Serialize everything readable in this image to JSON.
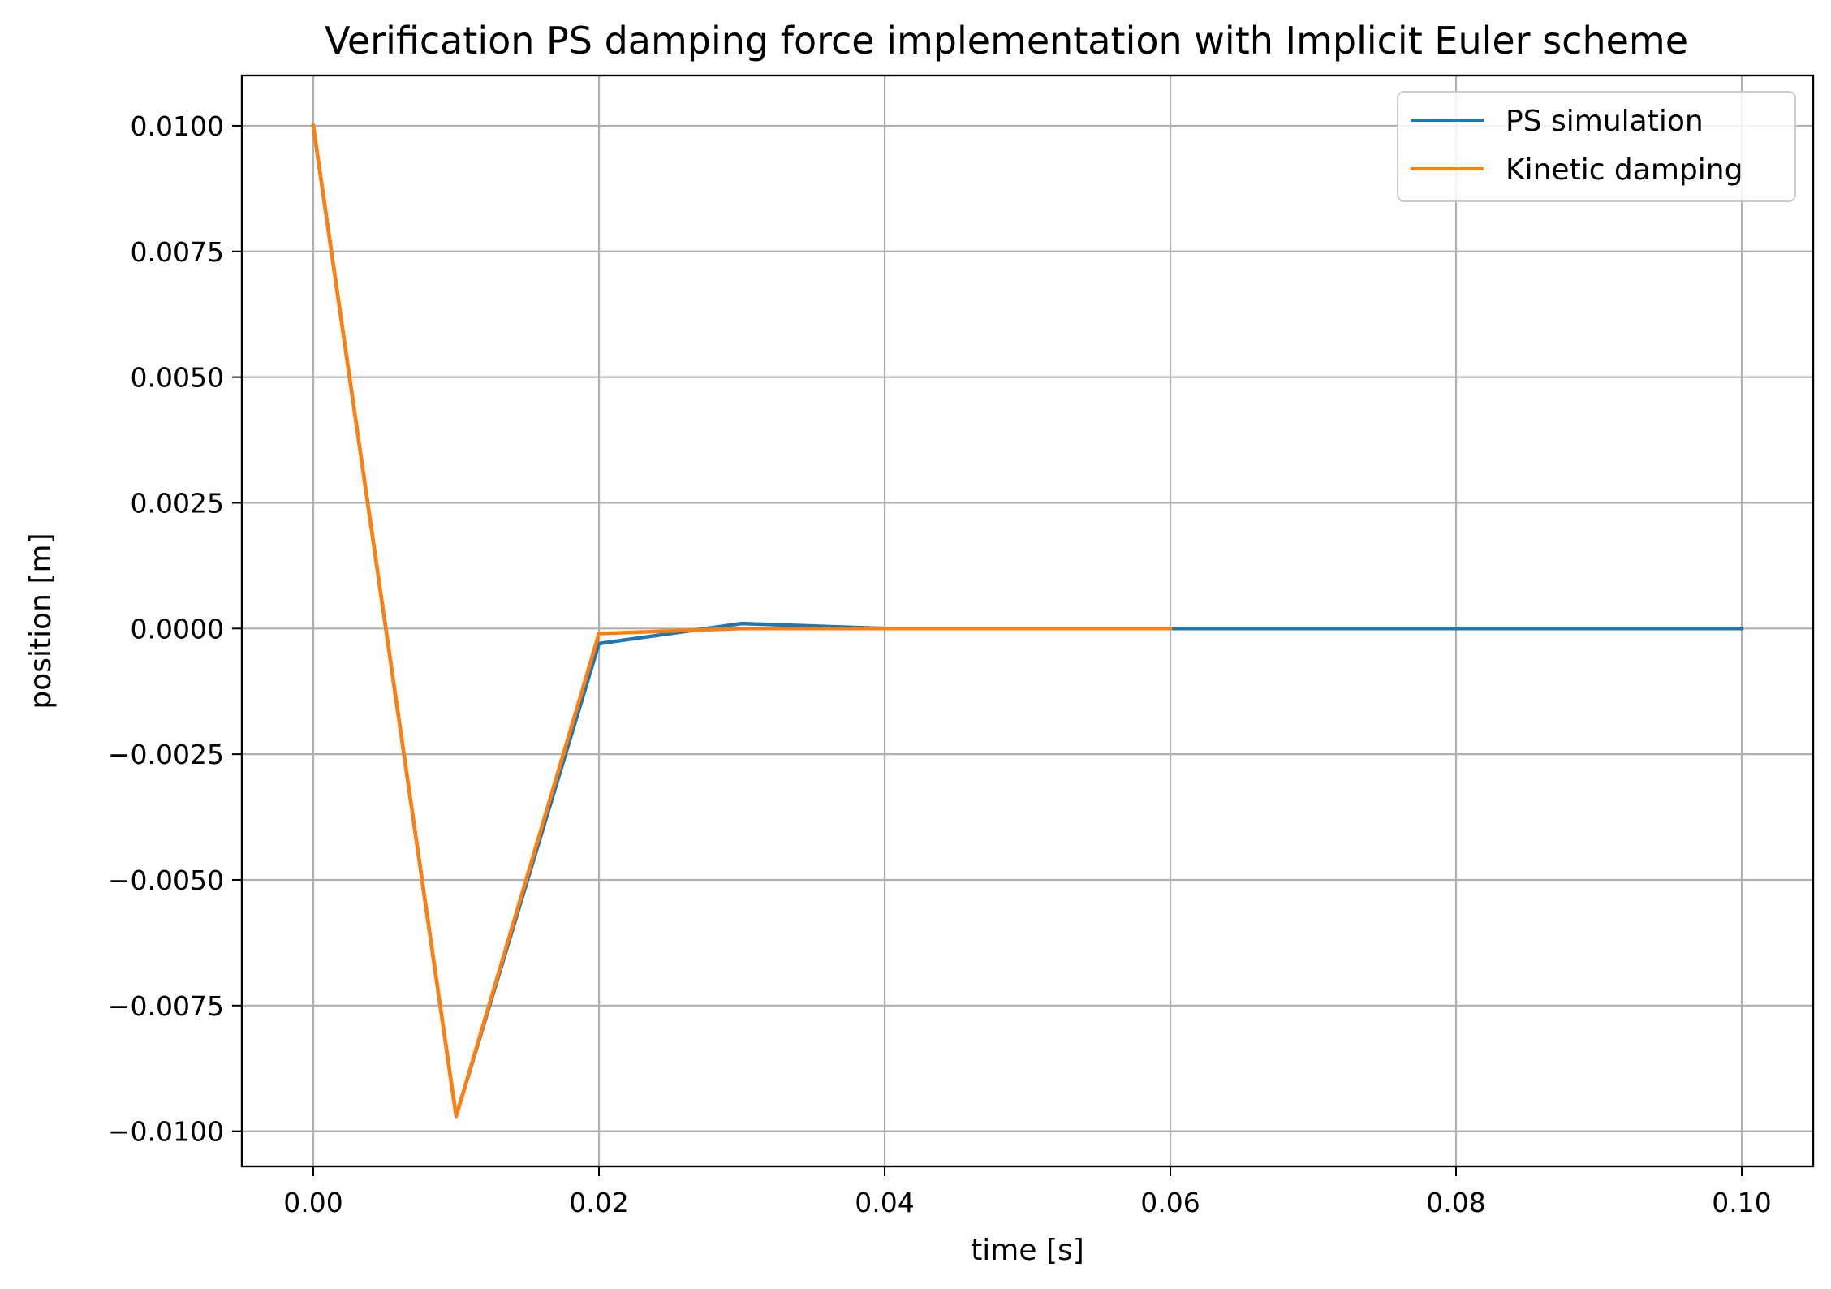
{
  "chart_data": {
    "type": "line",
    "title": "Verification PS damping force implementation with Implicit Euler scheme",
    "xlabel": "time [s]",
    "ylabel": "position [m]",
    "xlim": [
      -0.005,
      0.105
    ],
    "ylim": [
      -0.0107,
      0.011
    ],
    "xticks": [
      0.0,
      0.02,
      0.04,
      0.06,
      0.08,
      0.1
    ],
    "xtick_labels": [
      "0.00",
      "0.02",
      "0.04",
      "0.06",
      "0.08",
      "0.10"
    ],
    "yticks": [
      0.01,
      0.0075,
      0.005,
      0.0025,
      0.0,
      -0.0025,
      -0.005,
      -0.0075,
      -0.01
    ],
    "ytick_labels": [
      "0.0100",
      "0.0075",
      "0.0050",
      "0.0025",
      "0.0000",
      "−0.0025",
      "−0.0050",
      "−0.0075",
      "−0.0100"
    ],
    "grid": true,
    "legend_position": "top-right",
    "series": [
      {
        "name": "PS simulation",
        "color": "#1f77b4",
        "x": [
          0.0,
          0.01,
          0.02,
          0.03,
          0.04,
          0.05,
          0.06,
          0.07,
          0.08,
          0.09,
          0.1
        ],
        "y": [
          0.01,
          -0.0097,
          -0.0003,
          0.0001,
          0.0,
          0.0,
          0.0,
          0.0,
          0.0,
          0.0,
          0.0
        ]
      },
      {
        "name": "Kinetic damping",
        "color": "#ff7f0e",
        "x": [
          0.0,
          0.01,
          0.02,
          0.03,
          0.04,
          0.05,
          0.06
        ],
        "y": [
          0.01,
          -0.0097,
          -0.0001,
          0.0,
          0.0,
          0.0,
          0.0
        ]
      }
    ]
  }
}
